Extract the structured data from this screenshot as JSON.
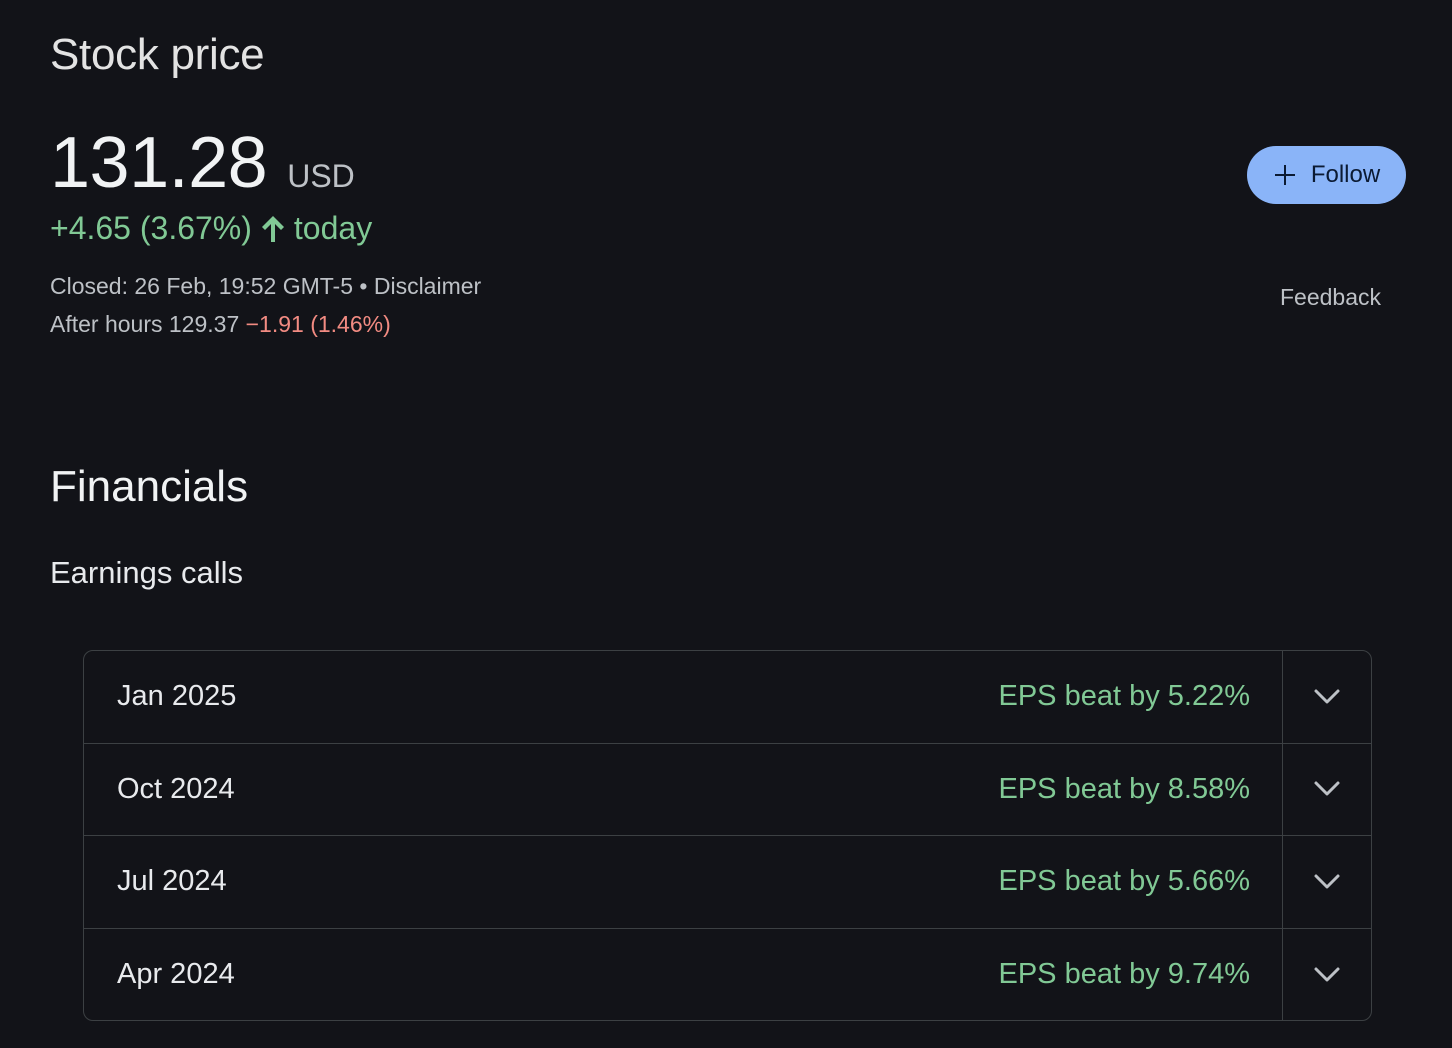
{
  "stock": {
    "title": "Stock price",
    "price": "131.28",
    "currency": "USD",
    "change": "+4.65 (3.67%)",
    "change_period": "today",
    "closed_text": "Closed: 26 Feb, 19:52 GMT-5",
    "separator": " • ",
    "disclaimer_label": "Disclaimer",
    "after_hours_label": "After hours 129.37",
    "after_hours_change": "−1.91 (1.46%)",
    "follow_label": "Follow",
    "feedback_label": "Feedback",
    "colors": {
      "positive": "#81c995",
      "negative": "#f28b82",
      "accent": "#8ab4f8"
    }
  },
  "financials": {
    "title": "Financials",
    "subtitle": "Earnings calls",
    "calls": [
      {
        "period": "Jan 2025",
        "eps": "EPS beat by 5.22%"
      },
      {
        "period": "Oct 2024",
        "eps": "EPS beat by 8.58%"
      },
      {
        "period": "Jul 2024",
        "eps": "EPS beat by 5.66%"
      },
      {
        "period": "Apr 2024",
        "eps": "EPS beat by 9.74%"
      }
    ]
  },
  "icons": {
    "arrow": "arrow-up-icon",
    "plus": "plus-icon",
    "chevron": "chevron-down-icon"
  }
}
